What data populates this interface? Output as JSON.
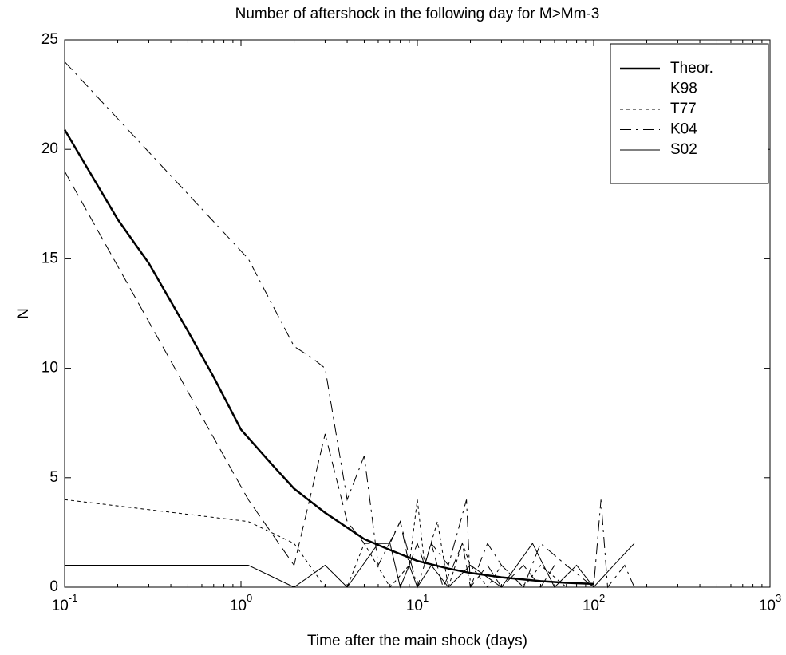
{
  "chart_data": {
    "type": "line",
    "title": "Number of aftershock in the following day for M>Mm-3",
    "xlabel": "Time after the main shock (days)",
    "ylabel": "N",
    "xscale": "log",
    "xlim": [
      0.1,
      1000
    ],
    "xticks": [
      {
        "value": 0.1,
        "label": "10",
        "exponent": "-1"
      },
      {
        "value": 1,
        "label": "10",
        "exponent": "0"
      },
      {
        "value": 10,
        "label": "10",
        "exponent": "1"
      },
      {
        "value": 100,
        "label": "10",
        "exponent": "2"
      },
      {
        "value": 1000,
        "label": "10",
        "exponent": "3"
      }
    ],
    "ylim": [
      0,
      25
    ],
    "yticks": [
      0,
      5,
      10,
      15,
      20,
      25
    ],
    "grid": false,
    "legend": "top-right",
    "series": [
      {
        "name": "Theor.",
        "color": "#000000",
        "linestyle": "solid",
        "linewidth": "thick",
        "x": [
          0.1,
          0.15,
          0.2,
          0.3,
          0.5,
          0.7,
          1,
          1.5,
          2,
          3,
          5,
          7,
          10,
          15,
          20,
          30,
          50,
          70,
          100
        ],
        "values": [
          20.9,
          18.5,
          16.8,
          14.8,
          11.7,
          9.6,
          7.2,
          5.6,
          4.5,
          3.4,
          2.2,
          1.7,
          1.2,
          0.85,
          0.65,
          0.45,
          0.28,
          0.2,
          0.15
        ]
      },
      {
        "name": "K98",
        "color": "#000000",
        "linestyle": "longdash",
        "linewidth": "thin",
        "x": [
          0.1,
          1.1,
          2,
          3,
          4,
          5,
          6,
          7,
          8,
          9,
          10,
          11,
          12,
          14,
          16,
          18,
          20,
          25,
          30,
          40,
          50,
          60
        ],
        "values": [
          19,
          4,
          1,
          7,
          3,
          2,
          2,
          2,
          3,
          1,
          2,
          1,
          2,
          0,
          1,
          2,
          0,
          1,
          0,
          1,
          0,
          1
        ]
      },
      {
        "name": "T77",
        "color": "#000000",
        "linestyle": "dotted",
        "linewidth": "thin",
        "x": [
          0.1,
          1.1,
          2,
          3,
          4,
          5,
          7,
          9,
          10,
          11,
          13,
          15,
          18,
          20,
          25,
          30,
          40,
          50,
          70
        ],
        "values": [
          4,
          3,
          2,
          0,
          0,
          2,
          0,
          1,
          4,
          1,
          3,
          0,
          2,
          1,
          0,
          1,
          0,
          1,
          0
        ]
      },
      {
        "name": "K04",
        "color": "#000000",
        "linestyle": "dashdot",
        "linewidth": "thin",
        "x": [
          0.1,
          1.1,
          2,
          2.5,
          3,
          4,
          5,
          6,
          8,
          10,
          12,
          15,
          19,
          20,
          25,
          30,
          40,
          50,
          70,
          100,
          110,
          120,
          150,
          170
        ],
        "values": [
          24,
          15,
          11,
          10.5,
          10,
          4,
          6,
          1,
          3,
          0,
          2,
          1,
          4,
          0,
          2,
          1,
          0,
          2,
          1,
          0,
          4,
          0,
          1,
          0
        ]
      },
      {
        "name": "S02",
        "color": "#000000",
        "linestyle": "solid",
        "linewidth": "thin",
        "x": [
          0.1,
          1.1,
          2,
          3,
          4,
          6,
          7,
          8,
          9,
          10,
          12,
          15,
          20,
          30,
          45,
          60,
          80,
          100,
          130,
          170
        ],
        "values": [
          1,
          1,
          0,
          1,
          0,
          2,
          2,
          0,
          1,
          0,
          1,
          0,
          1,
          0,
          2,
          0,
          1,
          0,
          1,
          2
        ]
      }
    ]
  }
}
